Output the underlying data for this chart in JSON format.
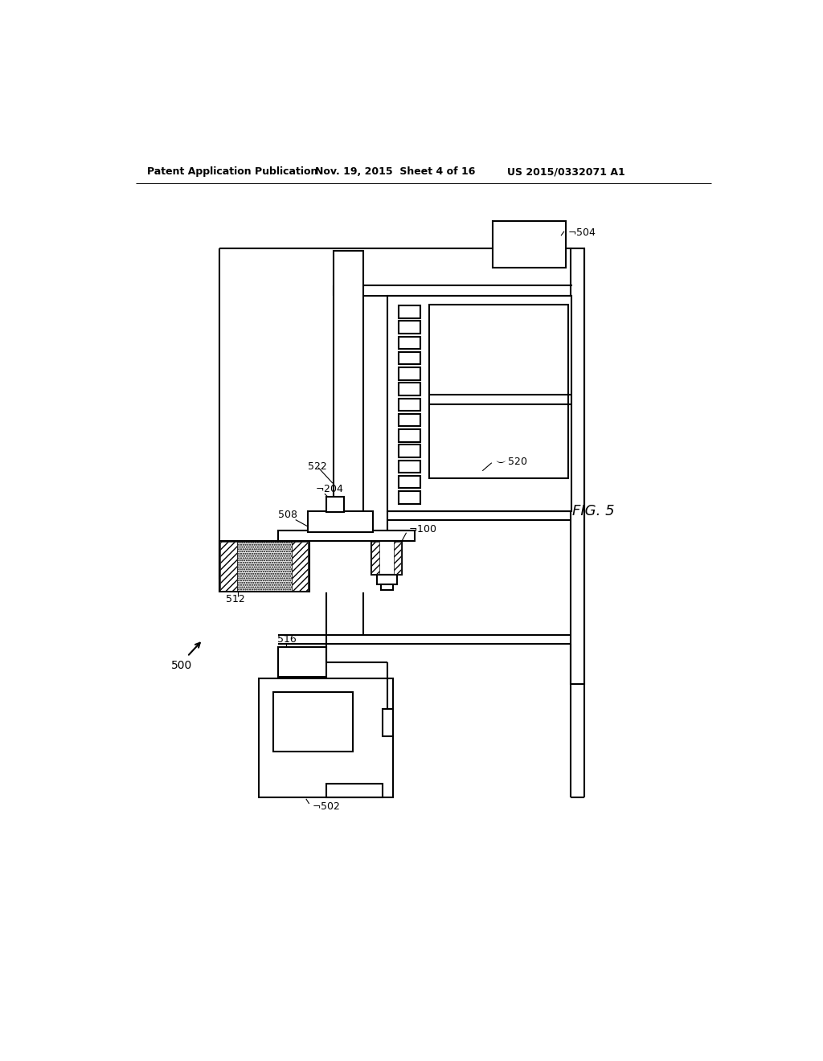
{
  "bg_color": "#ffffff",
  "header_left": "Patent Application Publication",
  "header_center": "Nov. 19, 2015  Sheet 4 of 16",
  "header_right": "US 2015/0332071 A1",
  "fig_label": "FIG. 5"
}
